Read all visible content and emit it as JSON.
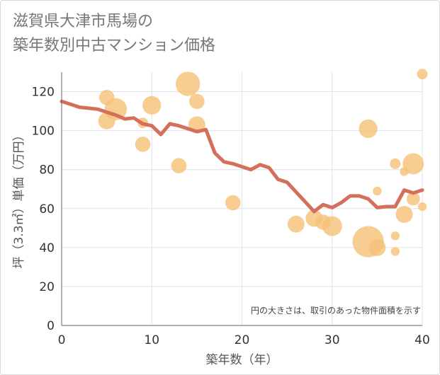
{
  "title_lines": [
    "滋賀県大津市馬場の",
    "築年数別中古マンション価格"
  ],
  "chart_data": {
    "type": "scatter",
    "title": "滋賀県大津市馬場の 築年数別中古マンション価格",
    "xlabel": "築年数（年）",
    "ylabel": "坪（3.3㎡）単価（万円）",
    "xlim": [
      0,
      40
    ],
    "ylim": [
      0,
      130
    ],
    "xticks": [
      0,
      10,
      20,
      30,
      40
    ],
    "yticks": [
      0,
      20,
      40,
      60,
      80,
      100,
      120
    ],
    "grid": true,
    "note": "円の大きさは、取引のあった物件面積を示す",
    "bubble_color": "#f5c27a",
    "line_color": "#d4705a",
    "bubbles": [
      {
        "x": 5,
        "y": 117,
        "size": 3
      },
      {
        "x": 5,
        "y": 105,
        "size": 4
      },
      {
        "x": 6,
        "y": 111,
        "size": 8
      },
      {
        "x": 9,
        "y": 93,
        "size": 3
      },
      {
        "x": 9,
        "y": 104,
        "size": 1
      },
      {
        "x": 10,
        "y": 113,
        "size": 5
      },
      {
        "x": 13,
        "y": 82,
        "size": 3
      },
      {
        "x": 14,
        "y": 124,
        "size": 10
      },
      {
        "x": 15,
        "y": 115,
        "size": 3
      },
      {
        "x": 15,
        "y": 103,
        "size": 4
      },
      {
        "x": 19,
        "y": 63,
        "size": 3
      },
      {
        "x": 26,
        "y": 52,
        "size": 4
      },
      {
        "x": 28,
        "y": 55,
        "size": 4
      },
      {
        "x": 29,
        "y": 53,
        "size": 3
      },
      {
        "x": 30,
        "y": 51,
        "size": 6
      },
      {
        "x": 34,
        "y": 101,
        "size": 5
      },
      {
        "x": 34,
        "y": 43,
        "size": 18
      },
      {
        "x": 35,
        "y": 40,
        "size": 4
      },
      {
        "x": 35,
        "y": 69,
        "size": 0.5
      },
      {
        "x": 37,
        "y": 83,
        "size": 1
      },
      {
        "x": 37,
        "y": 46,
        "size": 0.5
      },
      {
        "x": 37,
        "y": 38,
        "size": 0.5
      },
      {
        "x": 38,
        "y": 57,
        "size": 4
      },
      {
        "x": 38,
        "y": 79,
        "size": 0.5
      },
      {
        "x": 39,
        "y": 83,
        "size": 7
      },
      {
        "x": 39,
        "y": 65,
        "size": 2
      },
      {
        "x": 40,
        "y": 61,
        "size": 0.5
      },
      {
        "x": 40,
        "y": 129,
        "size": 1
      }
    ],
    "line": {
      "x": [
        0,
        1,
        2,
        3,
        4,
        5,
        6,
        7,
        8,
        9,
        10,
        11,
        12,
        13,
        14,
        15,
        16,
        17,
        18,
        19,
        20,
        21,
        22,
        23,
        24,
        25,
        26,
        27,
        28,
        29,
        30,
        31,
        32,
        33,
        34,
        35,
        36,
        37,
        38,
        39,
        40
      ],
      "y": [
        115,
        113.5,
        112,
        111.5,
        111,
        109.5,
        108,
        106,
        106.5,
        103.5,
        102.5,
        98,
        103.5,
        102.5,
        101,
        99.5,
        100.5,
        88.5,
        84,
        83,
        81.5,
        80,
        82.5,
        81,
        75,
        73.5,
        68.5,
        63.5,
        58.5,
        62,
        60.5,
        63,
        66.5,
        66.5,
        65,
        60.5,
        61,
        61,
        69.5,
        68,
        69.5
      ]
    }
  }
}
